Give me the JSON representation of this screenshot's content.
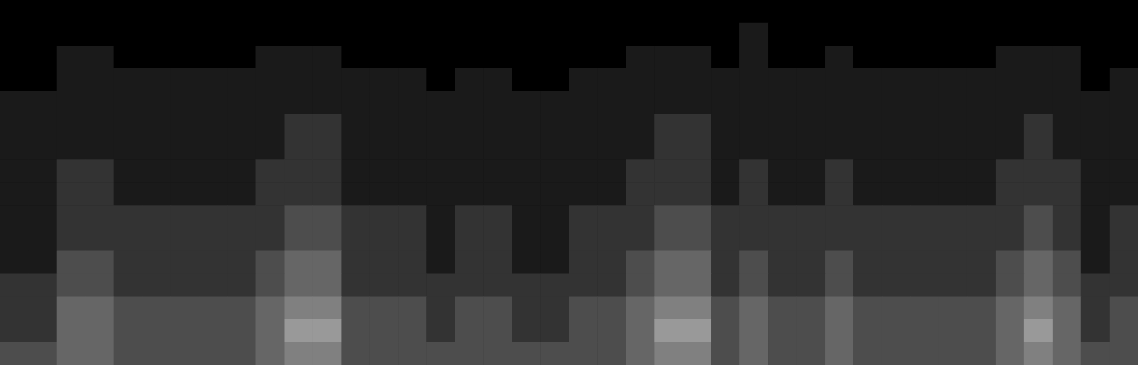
{
  "chart_data": {
    "type": "heatmap",
    "cells": [
      [
        0,
        0,
        0,
        0,
        0,
        0,
        0,
        0,
        0,
        0,
        0,
        0,
        0,
        0,
        0,
        0,
        0,
        0,
        0,
        0,
        0,
        0,
        0,
        0,
        0,
        0,
        0,
        0,
        0,
        0,
        0,
        0,
        0,
        0,
        0,
        0,
        0,
        0,
        0,
        0
      ],
      [
        0,
        0,
        0,
        0,
        0,
        0,
        0,
        0,
        0,
        0,
        0,
        0,
        0,
        0,
        0,
        0,
        0,
        0,
        0,
        0,
        0,
        0,
        0,
        0,
        0,
        0,
        1,
        0,
        0,
        0,
        0,
        0,
        0,
        0,
        0,
        0,
        0,
        0,
        0,
        0
      ],
      [
        0,
        0,
        1,
        1,
        0,
        0,
        0,
        0,
        0,
        1,
        1,
        1,
        0,
        0,
        0,
        0,
        0,
        0,
        0,
        0,
        0,
        0,
        1,
        1,
        1,
        0,
        1,
        0,
        0,
        1,
        0,
        0,
        0,
        0,
        0,
        1,
        1,
        1,
        0,
        0
      ],
      [
        0,
        0,
        1,
        1,
        1,
        1,
        1,
        1,
        1,
        1,
        1,
        1,
        1,
        1,
        1,
        0,
        1,
        1,
        0,
        0,
        1,
        1,
        1,
        1,
        1,
        1,
        1,
        1,
        1,
        1,
        1,
        1,
        1,
        1,
        1,
        1,
        1,
        1,
        0,
        1
      ],
      [
        1,
        1,
        1,
        1,
        1,
        1,
        1,
        1,
        1,
        1,
        1,
        1,
        1,
        1,
        1,
        1,
        1,
        1,
        1,
        1,
        1,
        1,
        1,
        1,
        1,
        1,
        1,
        1,
        1,
        1,
        1,
        1,
        1,
        1,
        1,
        1,
        1,
        1,
        1,
        1
      ],
      [
        1,
        1,
        1,
        1,
        1,
        1,
        1,
        1,
        1,
        1,
        2,
        2,
        1,
        1,
        1,
        1,
        1,
        1,
        1,
        1,
        1,
        1,
        1,
        2,
        2,
        1,
        1,
        1,
        1,
        1,
        1,
        1,
        1,
        1,
        1,
        1,
        2,
        1,
        1,
        1
      ],
      [
        1,
        1,
        1,
        1,
        1,
        1,
        1,
        1,
        1,
        1,
        2,
        2,
        1,
        1,
        1,
        1,
        1,
        1,
        1,
        1,
        1,
        1,
        1,
        2,
        2,
        1,
        1,
        1,
        1,
        1,
        1,
        1,
        1,
        1,
        1,
        1,
        2,
        1,
        1,
        1
      ],
      [
        1,
        1,
        2,
        2,
        1,
        1,
        1,
        1,
        1,
        2,
        2,
        2,
        1,
        1,
        1,
        1,
        1,
        1,
        1,
        1,
        1,
        1,
        2,
        2,
        2,
        1,
        2,
        1,
        1,
        2,
        1,
        1,
        1,
        1,
        1,
        2,
        2,
        2,
        1,
        1
      ],
      [
        1,
        1,
        2,
        2,
        1,
        1,
        1,
        1,
        1,
        2,
        2,
        2,
        1,
        1,
        1,
        1,
        1,
        1,
        1,
        1,
        1,
        1,
        2,
        2,
        2,
        1,
        2,
        1,
        1,
        2,
        1,
        1,
        1,
        1,
        1,
        2,
        2,
        2,
        1,
        1
      ],
      [
        1,
        1,
        2,
        2,
        2,
        2,
        2,
        2,
        2,
        2,
        3,
        3,
        2,
        2,
        2,
        1,
        2,
        2,
        1,
        1,
        2,
        2,
        2,
        3,
        3,
        2,
        2,
        2,
        2,
        2,
        2,
        2,
        2,
        2,
        2,
        2,
        3,
        2,
        1,
        2
      ],
      [
        1,
        1,
        2,
        2,
        2,
        2,
        2,
        2,
        2,
        2,
        3,
        3,
        2,
        2,
        2,
        1,
        2,
        2,
        1,
        1,
        2,
        2,
        2,
        3,
        3,
        2,
        2,
        2,
        2,
        2,
        2,
        2,
        2,
        2,
        2,
        2,
        3,
        2,
        1,
        2
      ],
      [
        1,
        1,
        3,
        3,
        2,
        2,
        2,
        2,
        2,
        3,
        4,
        4,
        2,
        2,
        2,
        1,
        2,
        2,
        1,
        1,
        2,
        2,
        3,
        4,
        4,
        2,
        3,
        2,
        2,
        3,
        2,
        2,
        2,
        2,
        2,
        3,
        4,
        3,
        1,
        2
      ],
      [
        2,
        2,
        3,
        3,
        2,
        2,
        2,
        2,
        2,
        3,
        4,
        4,
        2,
        2,
        2,
        2,
        2,
        2,
        2,
        2,
        2,
        2,
        3,
        4,
        4,
        2,
        3,
        2,
        2,
        3,
        2,
        2,
        2,
        2,
        2,
        3,
        4,
        3,
        2,
        2
      ],
      [
        2,
        2,
        4,
        4,
        3,
        3,
        3,
        3,
        3,
        4,
        5,
        5,
        3,
        3,
        3,
        2,
        3,
        3,
        2,
        2,
        3,
        3,
        4,
        5,
        5,
        3,
        4,
        3,
        3,
        4,
        3,
        3,
        3,
        3,
        3,
        4,
        5,
        4,
        2,
        3
      ],
      [
        2,
        2,
        4,
        4,
        3,
        3,
        3,
        3,
        3,
        4,
        6,
        6,
        3,
        3,
        3,
        2,
        3,
        3,
        2,
        2,
        3,
        3,
        4,
        6,
        6,
        3,
        4,
        3,
        3,
        4,
        3,
        3,
        3,
        3,
        3,
        4,
        6,
        4,
        2,
        3
      ],
      [
        3,
        3,
        4,
        4,
        3,
        3,
        3,
        3,
        3,
        4,
        5,
        5,
        3,
        3,
        3,
        3,
        3,
        3,
        3,
        3,
        3,
        3,
        4,
        5,
        5,
        3,
        4,
        3,
        3,
        4,
        3,
        3,
        3,
        3,
        3,
        4,
        5,
        4,
        3,
        3
      ]
    ],
    "value_range": [
      0,
      10
    ],
    "colors": [
      "#000000",
      "#ffffff"
    ],
    "tick_labels": false,
    "grid": false
  }
}
